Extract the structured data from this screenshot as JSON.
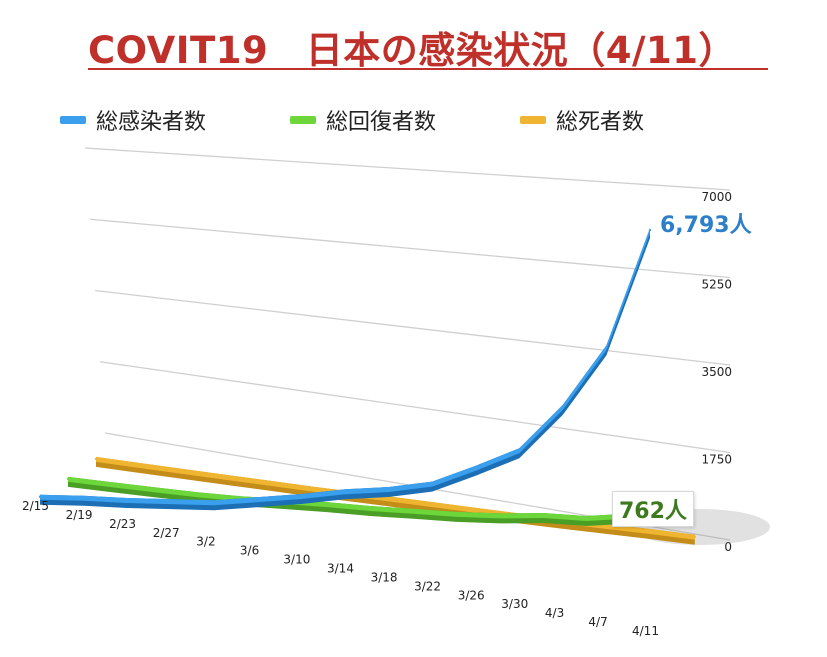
{
  "title": "COVIT19　日本の感染状況（4/11）",
  "legend": {
    "infected": "総感染者数",
    "recovered": "総回復者数",
    "deaths": "総死者数"
  },
  "colors": {
    "title": "#c0302b",
    "infected": "#3aa0ee",
    "recovered": "#6cd63a",
    "deaths": "#f0b530"
  },
  "callouts": {
    "infected": "6,793人",
    "recovered": "762人"
  },
  "chart_data": {
    "type": "area",
    "style": "3d-ribbon",
    "title": "COVIT19　日本の感染状況（4/11）",
    "xlabel": "",
    "ylabel": "",
    "ylim": [
      0,
      7000
    ],
    "y_ticks": [
      "0",
      "1750",
      "3500",
      "5250",
      "7000"
    ],
    "grid": true,
    "legend_position": "top",
    "x_tick_labels": [
      "2/15",
      "2/19",
      "2/23",
      "2/27",
      "3/2",
      "3/6",
      "3/10",
      "3/14",
      "3/18",
      "3/22",
      "3/26",
      "3/30",
      "4/3",
      "4/7",
      "4/11"
    ],
    "series": [
      {
        "name": "総感染者数",
        "values": [
          41,
          104,
          146,
          210,
          274,
          420,
          568,
          749,
          889,
          1089,
          1499,
          1953,
          2935,
          4257,
          6793
        ]
      },
      {
        "name": "総回復者数",
        "values": [
          1,
          2,
          5,
          9,
          31,
          76,
          118,
          144,
          191,
          235,
          310,
          424,
          472,
          632,
          762
        ]
      },
      {
        "name": "総死者数",
        "values": [
          1,
          1,
          1,
          3,
          6,
          6,
          16,
          24,
          29,
          36,
          45,
          57,
          77,
          99,
          109
        ]
      }
    ]
  }
}
